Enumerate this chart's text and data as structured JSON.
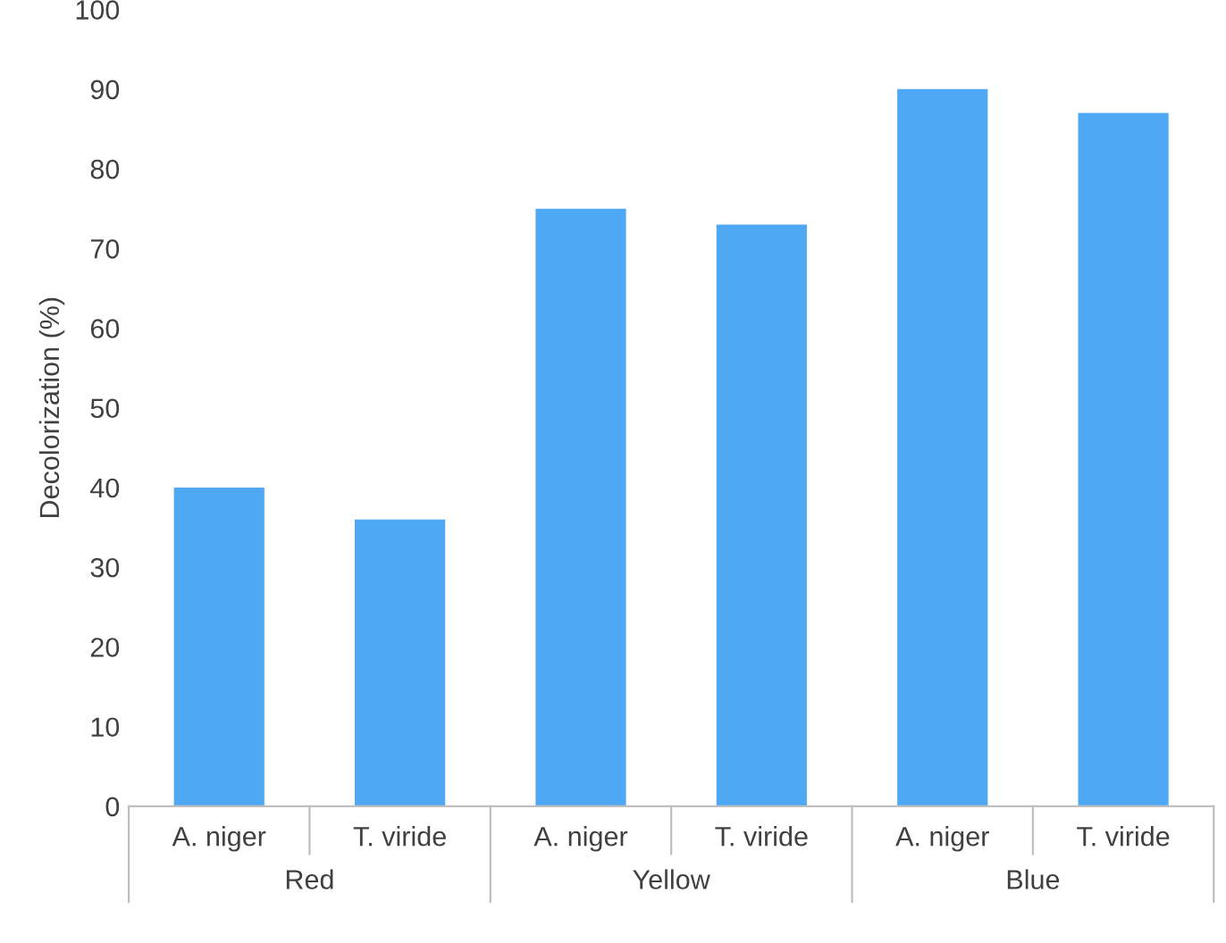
{
  "chart_data": {
    "type": "bar",
    "ylabel": "Decolorization (%)",
    "categories": [
      "A. niger",
      "T. viride",
      "A. niger",
      "T. viride",
      "A. niger",
      "T. viride"
    ],
    "values": [
      40,
      36,
      75,
      73,
      90,
      87
    ],
    "color": "#4ea8f4",
    "ylim": [
      0,
      100
    ],
    "yticks": [
      0,
      10,
      20,
      30,
      40,
      50,
      60,
      70,
      80,
      90,
      100
    ],
    "grid": false,
    "annotations": [
      "Red",
      "Yellow",
      "Blue"
    ]
  }
}
